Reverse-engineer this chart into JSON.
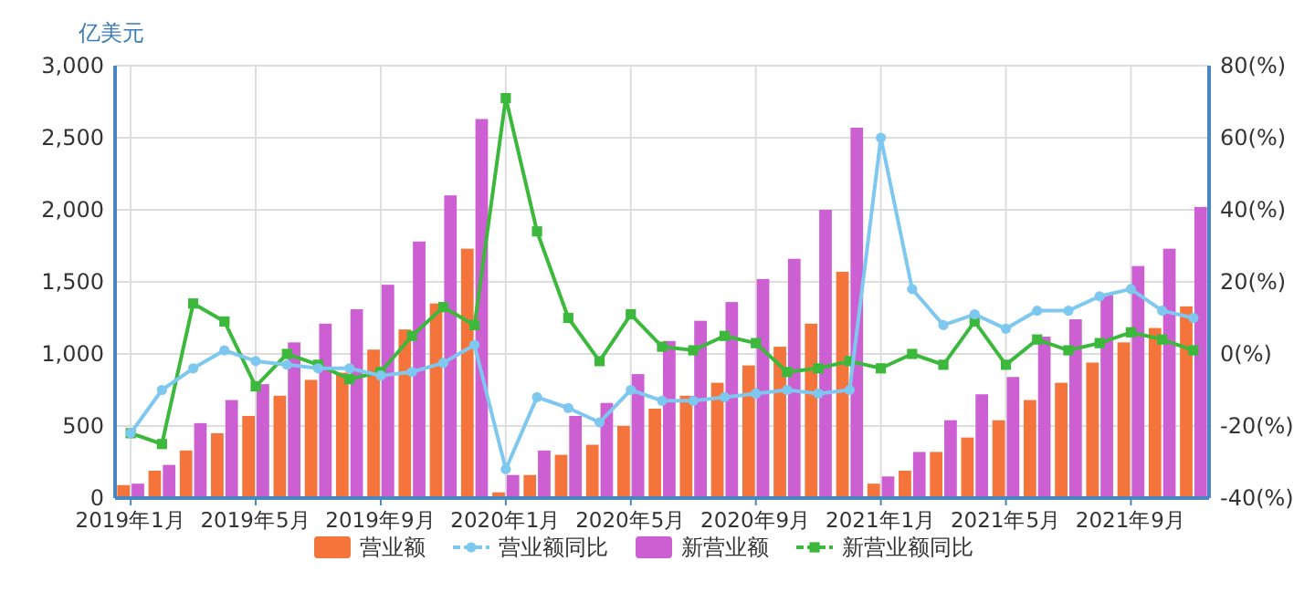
{
  "chart_data": {
    "type": "bar",
    "ylabel": "亿美元",
    "categories": [
      "2019年1月",
      null,
      null,
      null,
      "2019年5月",
      null,
      null,
      null,
      "2019年9月",
      null,
      null,
      null,
      "2020年1月",
      null,
      null,
      null,
      "2020年5月",
      null,
      null,
      null,
      "2020年9月",
      null,
      null,
      null,
      "2021年1月",
      null,
      null,
      null,
      "2021年5月",
      null,
      null,
      null,
      "2021年9月",
      null,
      null
    ],
    "series": [
      {
        "name": "营业额",
        "color": "#f4743b",
        "values": [
          90,
          190,
          330,
          450,
          570,
          710,
          820,
          870,
          1030,
          1170,
          1350,
          1730,
          40,
          160,
          300,
          370,
          500,
          620,
          710,
          800,
          920,
          1050,
          1210,
          1570,
          100,
          190,
          320,
          420,
          540,
          680,
          800,
          940,
          1080,
          1180,
          1330
        ]
      },
      {
        "name": "营业额同比",
        "type": "line",
        "axis": "y2",
        "marker": "circle",
        "color": "#7ec8f0",
        "values": [
          -22,
          -10,
          -4,
          1,
          -2,
          -3,
          -4,
          -4,
          -6,
          -5,
          -2.5,
          2.5,
          -32,
          -12,
          -15,
          -19,
          -10,
          -13,
          -13,
          -12,
          -11,
          -10,
          -11,
          -10,
          60,
          18,
          8,
          11,
          7,
          12,
          12,
          16,
          18,
          12,
          10
        ]
      },
      {
        "name": "新营业额",
        "color": "#cc5fd1",
        "values": [
          100,
          230,
          520,
          680,
          790,
          1080,
          1210,
          1310,
          1480,
          1780,
          2100,
          2630,
          160,
          330,
          570,
          660,
          860,
          1090,
          1230,
          1360,
          1520,
          1660,
          2000,
          2570,
          150,
          320,
          540,
          720,
          840,
          1120,
          1240,
          1410,
          1610,
          1730,
          2020
        ]
      },
      {
        "name": "新营业额同比",
        "type": "line",
        "axis": "y2",
        "marker": "square",
        "color": "#3cb93c",
        "values": [
          -22,
          -25,
          14,
          9,
          -9,
          0,
          -3,
          -7,
          -5,
          5,
          13,
          8,
          71,
          34,
          10,
          -2,
          11,
          2,
          1,
          5,
          3,
          -5,
          -4,
          -2,
          -4,
          0,
          -3,
          9,
          -3,
          4,
          1,
          3,
          6,
          4,
          1
        ]
      }
    ],
    "ylim": [
      0,
      3000
    ],
    "yticks": [
      0,
      500,
      {
        "value": 1000,
        "label": "1,000"
      },
      {
        "value": 1500,
        "label": "1,500"
      },
      {
        "value": 2000,
        "label": "2,000"
      },
      {
        "value": 2500,
        "label": "2,500"
      },
      {
        "value": 3000,
        "label": "3,000"
      }
    ],
    "y2lim": [
      -40,
      80
    ],
    "y2ticks": [
      {
        "value": -40,
        "label": "-40(%)"
      },
      {
        "value": -20,
        "label": "-20(%)"
      },
      {
        "value": 0,
        "label": "0(%)"
      },
      {
        "value": 20,
        "label": "20(%)"
      },
      {
        "value": 40,
        "label": "40(%)"
      },
      {
        "value": 60,
        "label": "60(%)"
      },
      {
        "value": 80,
        "label": "80(%)"
      }
    ],
    "grid": true,
    "legend": "bottom"
  }
}
